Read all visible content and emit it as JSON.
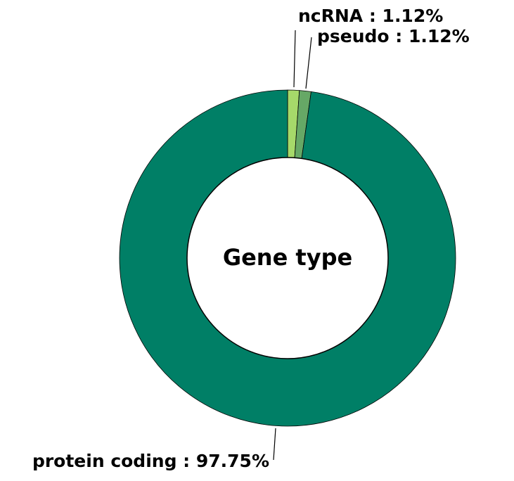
{
  "chart_data": {
    "type": "pie",
    "variant": "donut",
    "title": "Gene type",
    "slices": [
      {
        "name": "ncRNA",
        "value": 1.12,
        "label": "ncRNA : 1.12%",
        "color": "#a6d96a"
      },
      {
        "name": "pseudo",
        "value": 1.12,
        "label": "pseudo : 1.12%",
        "color": "#66a866"
      },
      {
        "name": "protein coding",
        "value": 97.75,
        "label": "protein coding : 97.75%",
        "color": "#007f66"
      }
    ],
    "start_angle": "top (12 o'clock)",
    "direction": "clockwise",
    "legend": "none (labels beside slices)",
    "edge_color": "#000000"
  }
}
